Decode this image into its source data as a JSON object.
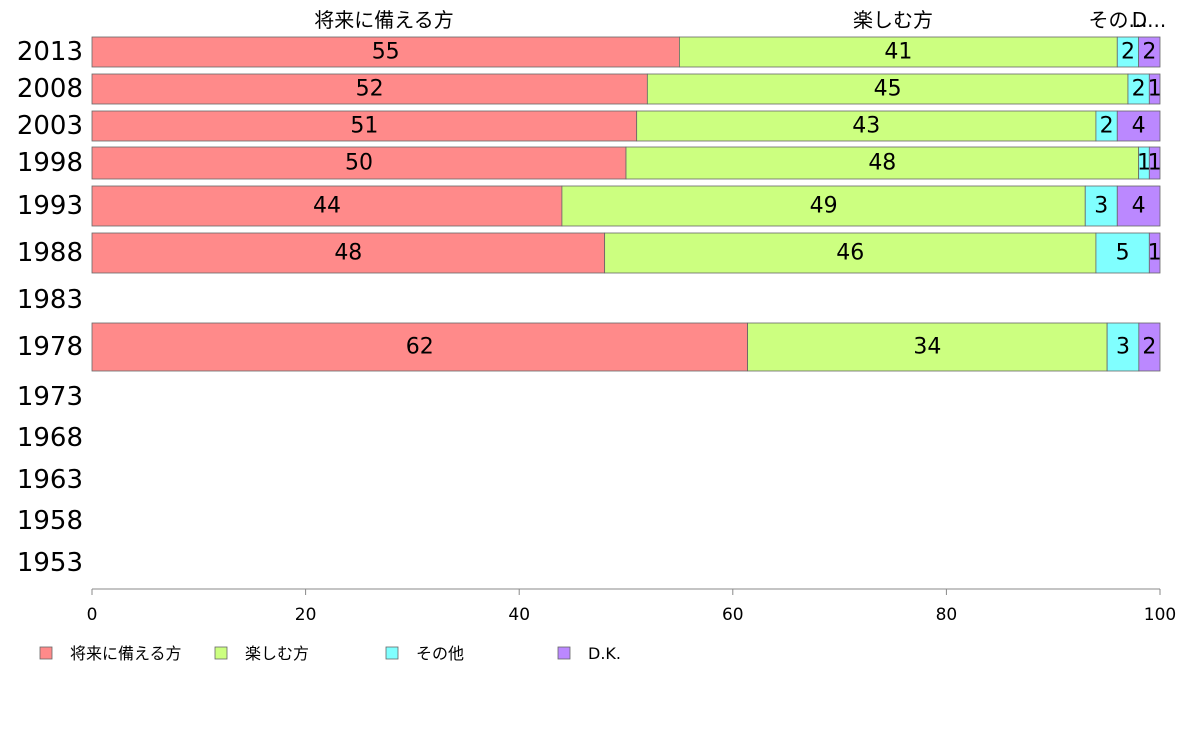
{
  "chart_data": {
    "type": "bar",
    "orientation": "horizontal",
    "stacked": true,
    "categories": [
      "2013",
      "2008",
      "2003",
      "1998",
      "1993",
      "1988",
      "1983",
      "1978",
      "1973",
      "1968",
      "1963",
      "1958",
      "1953"
    ],
    "series": [
      {
        "name": "将来に備える方",
        "color": "#ff8a8a",
        "values": [
          55,
          52,
          51,
          50,
          44,
          48,
          null,
          62,
          null,
          null,
          null,
          null,
          null
        ]
      },
      {
        "name": "楽しむ方",
        "color": "#ccff80",
        "values": [
          41,
          45,
          43,
          48,
          49,
          46,
          null,
          34,
          null,
          null,
          null,
          null,
          null
        ]
      },
      {
        "name": "その他",
        "color": "#80ffff",
        "values": [
          2,
          2,
          2,
          1,
          3,
          5,
          null,
          3,
          null,
          null,
          null,
          null,
          null
        ]
      },
      {
        "name": "D.K.",
        "color": "#bb88ff",
        "values": [
          2,
          1,
          4,
          1,
          4,
          1,
          null,
          2,
          null,
          null,
          null,
          null,
          null
        ]
      }
    ],
    "column_headers": [
      "将来に備える方",
      "楽しむ方",
      "その...",
      "D..."
    ],
    "xlim": [
      0,
      100
    ],
    "xticks": [
      0,
      20,
      40,
      60,
      80,
      100
    ],
    "grid": false,
    "legend_position": "bottom"
  }
}
